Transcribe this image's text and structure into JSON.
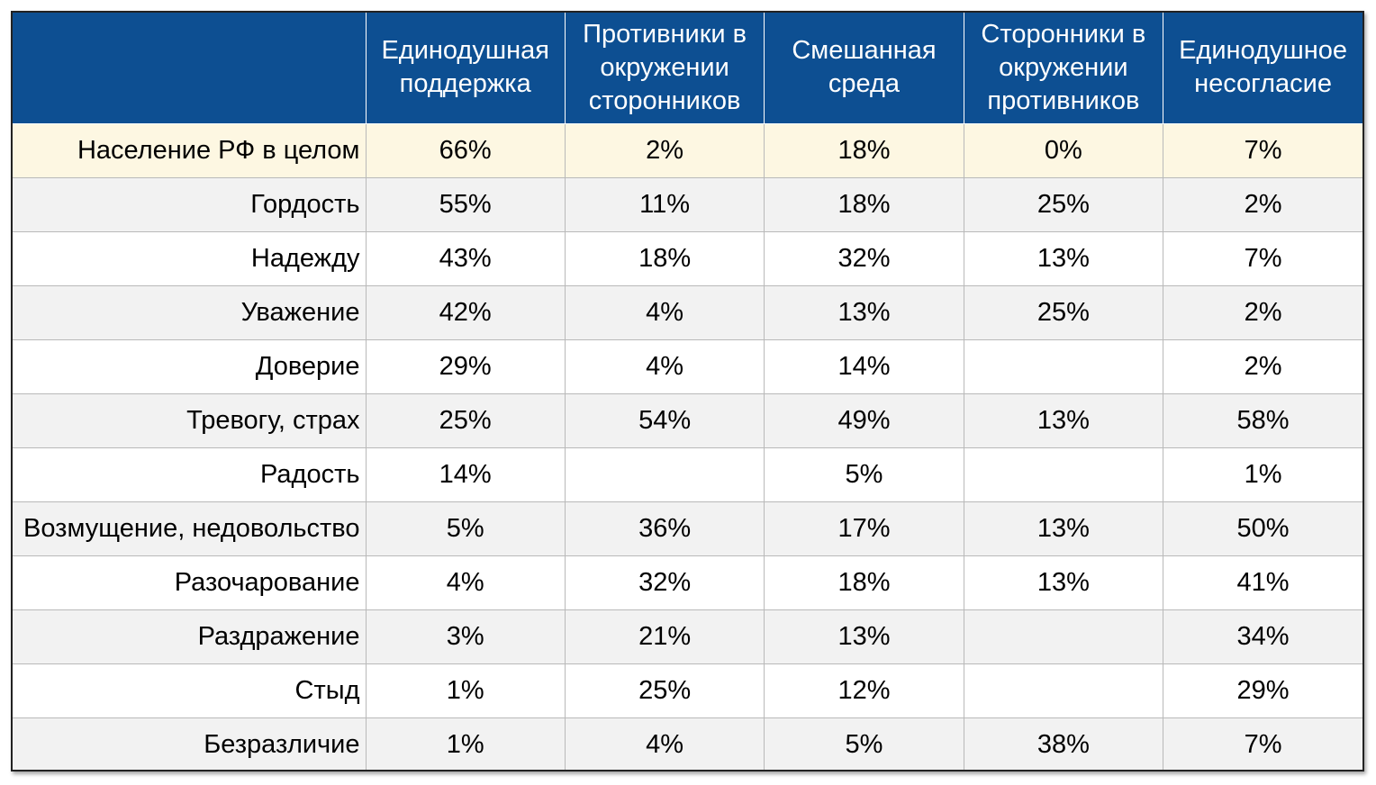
{
  "chart_data": {
    "type": "table",
    "columns": [
      "Единодушная поддержка",
      "Противники в окружении сторонников",
      "Смешанная среда",
      "Сторонники в окружении противников",
      "Единодушное несогласие"
    ],
    "rows": [
      {
        "label": "Население РФ в целом",
        "values": [
          "66%",
          "2%",
          "18%",
          "0%",
          "7%"
        ]
      },
      {
        "label": "Гордость",
        "values": [
          "55%",
          "11%",
          "18%",
          "25%",
          "2%"
        ]
      },
      {
        "label": "Надежду",
        "values": [
          "43%",
          "18%",
          "32%",
          "13%",
          "7%"
        ]
      },
      {
        "label": "Уважение",
        "values": [
          "42%",
          "4%",
          "13%",
          "25%",
          "2%"
        ]
      },
      {
        "label": "Доверие",
        "values": [
          "29%",
          "4%",
          "14%",
          "",
          "2%"
        ]
      },
      {
        "label": "Тревогу, страх",
        "values": [
          "25%",
          "54%",
          "49%",
          "13%",
          "58%"
        ]
      },
      {
        "label": "Радость",
        "values": [
          "14%",
          "",
          "5%",
          "",
          "1%"
        ]
      },
      {
        "label": "Возмущение, недовольство",
        "values": [
          "5%",
          "36%",
          "17%",
          "13%",
          "50%"
        ]
      },
      {
        "label": "Разочарование",
        "values": [
          "4%",
          "32%",
          "18%",
          "13%",
          "41%"
        ]
      },
      {
        "label": "Раздражение",
        "values": [
          "3%",
          "21%",
          "13%",
          "",
          "34%"
        ]
      },
      {
        "label": "Стыд",
        "values": [
          "1%",
          "25%",
          "12%",
          "",
          "29%"
        ]
      },
      {
        "label": "Безразличие",
        "values": [
          "1%",
          "4%",
          "5%",
          "38%",
          "7%"
        ]
      }
    ],
    "colors": {
      "header_background": "#0d4f92",
      "header_text": "#ffffff",
      "highlight_row": "#fdf7e2",
      "striped_row": "#f2f2f2"
    }
  }
}
